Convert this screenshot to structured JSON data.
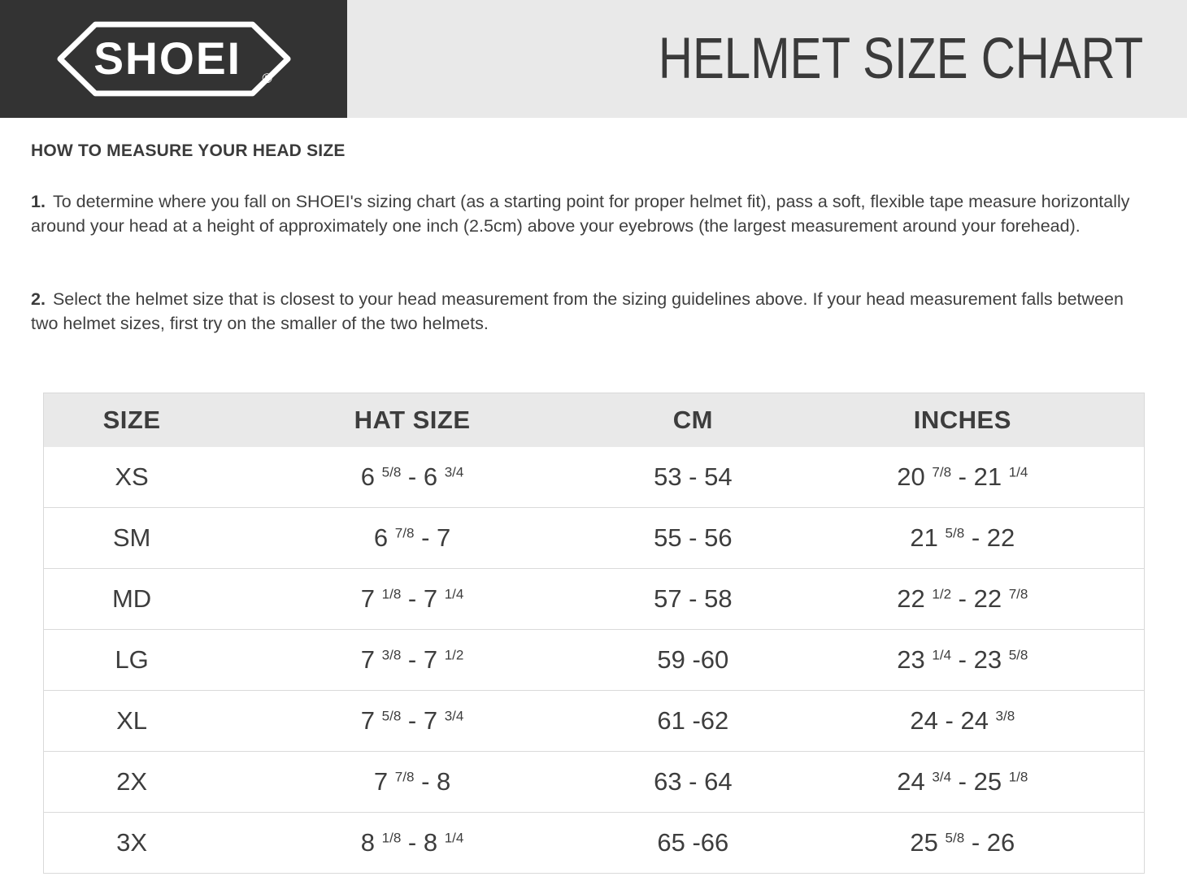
{
  "banner": {
    "logo_text": "SHOEI",
    "registered_mark": "®",
    "title": "HELMET SIZE CHART"
  },
  "instructions": {
    "heading": "HOW TO MEASURE YOUR HEAD SIZE",
    "steps": [
      {
        "number": "1.",
        "text": "To determine where you fall on SHOEI's sizing chart (as a starting point for proper helmet fit), pass a soft, flexible tape measure horizontally around your head at a height of approximately one inch (2.5cm) above your eyebrows (the largest measurement around your forehead)."
      },
      {
        "number": "2.",
        "text": "Select the helmet size that is closest to your head measurement from the sizing guidelines above. If your head measurement falls between two helmet sizes, first try on the smaller of the two helmets."
      }
    ]
  },
  "table": {
    "columns": [
      "SIZE",
      "HAT SIZE",
      "CM",
      "INCHES"
    ],
    "column_keys": [
      "size",
      "hat_size",
      "cm",
      "inches"
    ],
    "rows": [
      {
        "size": "XS",
        "hat_size": "6 ^5/8^ - 6 ^3/4^",
        "cm": "53 - 54",
        "inches": "20 ^7/8^ - 21 ^1/4^"
      },
      {
        "size": "SM",
        "hat_size": "6 ^7/8^ - 7",
        "cm": "55 - 56",
        "inches": "21 ^5/8^ - 22"
      },
      {
        "size": "MD",
        "hat_size": "7 ^1/8^ - 7 ^1/4^",
        "cm": "57 - 58",
        "inches": "22 ^1/2^ - 22 ^7/8^"
      },
      {
        "size": "LG",
        "hat_size": "7 ^3/8^ - 7 ^1/2^",
        "cm": "59 -60",
        "inches": "23 ^1/4^ - 23 ^5/8^"
      },
      {
        "size": "XL",
        "hat_size": "7 ^5/8^ - 7 ^3/4^",
        "cm": "61 -62",
        "inches": "24 - 24 ^3/8^"
      },
      {
        "size": "2X",
        "hat_size": "7 ^7/8^ - 8",
        "cm": "63 - 64",
        "inches": "24 ^3/4^ - 25 ^1/8^"
      },
      {
        "size": "3X",
        "hat_size": "8 ^1/8^ - 8 ^1/4^",
        "cm": "65 -66",
        "inches": "25 ^5/8^ - 26"
      }
    ]
  },
  "colors": {
    "logo_box_background": "#333333",
    "banner_background": "#e9e9e9",
    "table_header_background": "#e9e9e9",
    "text": "#3d3d3d",
    "divider": "#d9d9d9"
  }
}
